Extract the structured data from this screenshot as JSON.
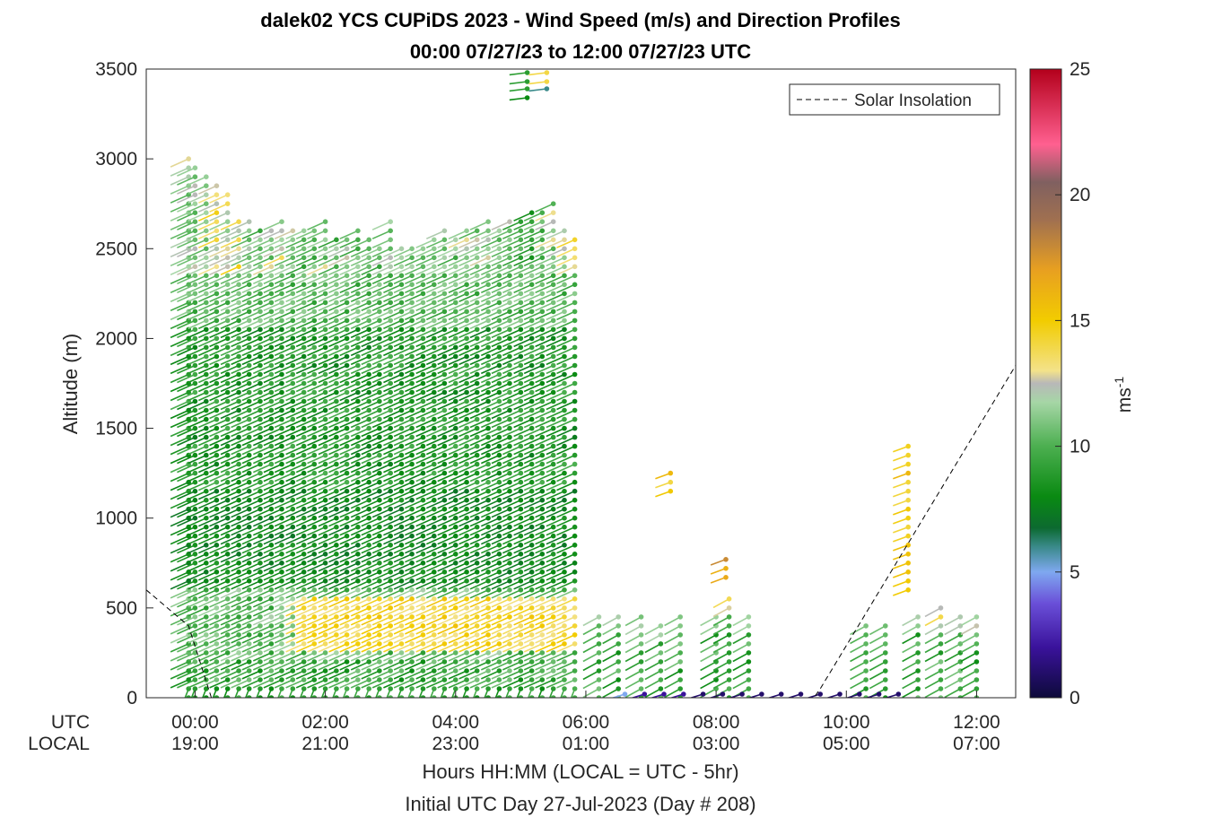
{
  "chart_data": {
    "type": "wind-barb-profile",
    "title": "dalek02 YCS CUPiDS 2023 - Wind Speed (m/s) and Direction Profiles",
    "subtitle": "00:00 07/27/23 to 12:00 07/27/23  UTC",
    "ylabel": "Altitude (m)",
    "xlabel": "Hours HH:MM  (LOCAL = UTC - 5hr)",
    "xlabel2": "Initial UTC Day 27-Jul-2023 (Day # 208)",
    "row_label_utc": "UTC",
    "row_label_local": "LOCAL",
    "ylim": [
      0,
      3500
    ],
    "y_ticks": [
      "0",
      "500",
      "1000",
      "1500",
      "2000",
      "2500",
      "3000",
      "3500"
    ],
    "xlim_hours": [
      -0.75,
      12.6
    ],
    "x_ticks": [
      {
        "hour": 0,
        "utc": "00:00",
        "local": "19:00"
      },
      {
        "hour": 2,
        "utc": "02:00",
        "local": "21:00"
      },
      {
        "hour": 4,
        "utc": "04:00",
        "local": "23:00"
      },
      {
        "hour": 6,
        "utc": "06:00",
        "local": "01:00"
      },
      {
        "hour": 8,
        "utc": "08:00",
        "local": "03:00"
      },
      {
        "hour": 10,
        "utc": "10:00",
        "local": "05:00"
      },
      {
        "hour": 12,
        "utc": "12:00",
        "local": "07:00"
      }
    ],
    "legend": {
      "label": "Solar Insolation",
      "placement": "top-right"
    },
    "colorbar": {
      "label": "ms",
      "label_sup": "-1",
      "range": [
        0,
        25
      ],
      "ticks": [
        "0",
        "5",
        "10",
        "15",
        "20",
        "25"
      ]
    },
    "grid": false,
    "profiles": [
      {
        "hour": -0.1,
        "top": 3000,
        "speed": 10
      },
      {
        "hour": 0.0,
        "top": 2950,
        "speed": 10
      },
      {
        "hour": 0.17,
        "top": 2900,
        "speed": 9
      },
      {
        "hour": 0.33,
        "top": 2850,
        "speed": 12
      },
      {
        "hour": 0.5,
        "top": 2800,
        "speed": 11
      },
      {
        "hour": 0.67,
        "top": 2670,
        "speed": 12
      },
      {
        "hour": 0.83,
        "top": 2660,
        "speed": 10
      },
      {
        "hour": 1.0,
        "top": 2620,
        "speed": 9
      },
      {
        "hour": 1.17,
        "top": 2600,
        "speed": 10
      },
      {
        "hour": 1.33,
        "top": 2650,
        "speed": 11
      },
      {
        "hour": 1.5,
        "top": 2620,
        "speed": 10
      },
      {
        "hour": 1.67,
        "top": 2600,
        "speed": 9
      },
      {
        "hour": 1.83,
        "top": 2620,
        "speed": 9
      },
      {
        "hour": 2.0,
        "top": 2660,
        "speed": 10
      },
      {
        "hour": 2.17,
        "top": 2580,
        "speed": 9
      },
      {
        "hour": 2.33,
        "top": 2560,
        "speed": 10
      },
      {
        "hour": 2.5,
        "top": 2600,
        "speed": 9
      },
      {
        "hour": 2.67,
        "top": 2560,
        "speed": 10
      },
      {
        "hour": 2.83,
        "top": 2540,
        "speed": 9
      },
      {
        "hour": 3.0,
        "top": 2660,
        "speed": 10
      },
      {
        "hour": 3.17,
        "top": 2520,
        "speed": 9
      },
      {
        "hour": 3.33,
        "top": 2510,
        "speed": 9
      },
      {
        "hour": 3.5,
        "top": 2500,
        "speed": 9
      },
      {
        "hour": 3.67,
        "top": 2560,
        "speed": 10
      },
      {
        "hour": 3.83,
        "top": 2600,
        "speed": 10
      },
      {
        "hour": 4.0,
        "top": 2560,
        "speed": 9
      },
      {
        "hour": 4.17,
        "top": 2620,
        "speed": 10
      },
      {
        "hour": 4.33,
        "top": 2640,
        "speed": 10
      },
      {
        "hour": 4.5,
        "top": 2660,
        "speed": 10
      },
      {
        "hour": 4.67,
        "top": 2620,
        "speed": 9
      },
      {
        "hour": 4.83,
        "top": 2660,
        "speed": 10
      },
      {
        "hour": 5.0,
        "top": 2680,
        "speed": 9
      },
      {
        "hour": 5.17,
        "top": 2720,
        "speed": 8
      },
      {
        "hour": 5.33,
        "top": 2700,
        "speed": 9
      },
      {
        "hour": 5.5,
        "top": 2760,
        "speed": 10
      },
      {
        "hour": 5.67,
        "top": 2620,
        "speed": 11
      },
      {
        "hour": 5.83,
        "top": 2560,
        "speed": 12
      }
    ],
    "upper_cluster": [
      {
        "hour": 5.1,
        "alt": 3480,
        "speed": 9
      },
      {
        "hour": 5.4,
        "alt": 3480,
        "speed": 14
      },
      {
        "hour": 5.1,
        "alt": 3430,
        "speed": 9
      },
      {
        "hour": 5.4,
        "alt": 3430,
        "speed": 14
      },
      {
        "hour": 5.1,
        "alt": 3390,
        "speed": 9
      },
      {
        "hour": 5.4,
        "alt": 3390,
        "speed": 6
      },
      {
        "hour": 5.1,
        "alt": 3340,
        "speed": 8
      }
    ],
    "late_profiles": [
      {
        "hour": 6.2,
        "top": 490,
        "speed": 10
      },
      {
        "hour": 6.5,
        "top": 470,
        "speed": 10
      },
      {
        "hour": 6.85,
        "top": 460,
        "speed": 10
      },
      {
        "hour": 7.15,
        "top": 420,
        "speed": 10
      },
      {
        "hour": 7.45,
        "top": 460,
        "speed": 10
      },
      {
        "hour": 8.0,
        "top": 480,
        "speed": 10
      },
      {
        "hour": 8.2,
        "top": 590,
        "speed": 12
      },
      {
        "hour": 8.5,
        "top": 480,
        "speed": 10
      },
      {
        "hour": 10.3,
        "top": 400,
        "speed": 9
      },
      {
        "hour": 10.6,
        "top": 430,
        "speed": 10
      },
      {
        "hour": 11.1,
        "top": 490,
        "speed": 11
      },
      {
        "hour": 11.45,
        "top": 510,
        "speed": 12
      },
      {
        "hour": 11.75,
        "top": 490,
        "speed": 11
      },
      {
        "hour": 12.0,
        "top": 490,
        "speed": 11
      }
    ],
    "yellow_columns": [
      {
        "hour": 7.3,
        "alts": [
          1150,
          1200,
          1250
        ],
        "speed": 14
      },
      {
        "hour": 8.15,
        "alts": [
          670,
          720,
          770
        ],
        "speed": 16
      },
      {
        "hour": 10.95,
        "alts": [
          600,
          650,
          700,
          750,
          800,
          850,
          900,
          950,
          1000,
          1050,
          1100,
          1150,
          1200,
          1250,
          1300,
          1350,
          1400
        ],
        "speed": 14
      }
    ],
    "surface": [
      {
        "hour": 6.6,
        "speed": 5
      },
      {
        "hour": 6.9,
        "speed": 2
      },
      {
        "hour": 7.2,
        "speed": 2
      },
      {
        "hour": 7.5,
        "speed": 2
      },
      {
        "hour": 7.8,
        "speed": 1
      },
      {
        "hour": 8.1,
        "speed": 1
      },
      {
        "hour": 8.4,
        "speed": 1
      },
      {
        "hour": 8.7,
        "speed": 1
      },
      {
        "hour": 9.0,
        "speed": 1
      },
      {
        "hour": 9.3,
        "speed": 1
      },
      {
        "hour": 9.6,
        "speed": 1
      },
      {
        "hour": 9.9,
        "speed": 1
      },
      {
        "hour": 10.2,
        "speed": 1
      },
      {
        "hour": 10.5,
        "speed": 1
      },
      {
        "hour": 10.8,
        "speed": 1
      }
    ],
    "solar_insolation": {
      "x": [
        -0.75,
        -0.1,
        0.25,
        1.0,
        9.5,
        9.6,
        12.6
      ],
      "y": [
        600,
        400,
        0,
        0,
        0,
        50,
        1850
      ]
    }
  }
}
